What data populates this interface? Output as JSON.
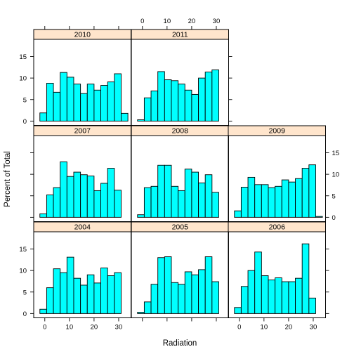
{
  "chart_data": {
    "type": "bar",
    "subtype": "histogram-trellis",
    "xlabel": "Radiation",
    "ylabel": "Percent of Total",
    "xlim": [
      -4.5,
      35
    ],
    "ylim": [
      -1,
      19
    ],
    "xticks": [
      0,
      10,
      20,
      30
    ],
    "yticks": [
      0,
      5,
      10,
      15
    ],
    "bin_edges": [
      -2,
      0.75,
      3.5,
      6.25,
      9,
      11.75,
      14.5,
      17.25,
      20,
      22.75,
      25.5,
      28.25,
      31,
      33.75
    ],
    "panel_layout": [
      [
        "2010",
        "2011",
        null
      ],
      [
        "2007",
        "2008",
        "2009"
      ],
      [
        "2004",
        "2005",
        "2006"
      ]
    ],
    "colors": {
      "bar_fill": "#00ffff",
      "bar_stroke": "#000000",
      "strip_fill": "#ffe5cc"
    },
    "panels": [
      {
        "name": "2010",
        "values": [
          1.9,
          8.8,
          6.7,
          11.3,
          10.2,
          8.6,
          6.4,
          8.6,
          7.2,
          8.3,
          9.1,
          11.0,
          1.8
        ]
      },
      {
        "name": "2011",
        "values": [
          0.3,
          5.4,
          7.0,
          11.5,
          9.6,
          9.4,
          8.6,
          7.2,
          6.2,
          10.0,
          11.4,
          11.9,
          0
        ]
      },
      {
        "name": "2007",
        "values": [
          0.8,
          5.2,
          6.9,
          12.9,
          9.5,
          10.5,
          9.9,
          9.6,
          6.2,
          7.9,
          11.4,
          6.3,
          0
        ]
      },
      {
        "name": "2008",
        "values": [
          0.6,
          6.9,
          7.2,
          12.1,
          12.1,
          7.2,
          6.2,
          11.2,
          10.5,
          8.0,
          9.9,
          5.8,
          0
        ]
      },
      {
        "name": "2009",
        "values": [
          1.5,
          7.0,
          9.3,
          7.6,
          7.6,
          6.9,
          7.2,
          8.7,
          8.2,
          9.0,
          11.4,
          12.2,
          0.2
        ]
      },
      {
        "name": "2004",
        "values": [
          1.0,
          6.0,
          10.4,
          9.5,
          13.1,
          8.2,
          6.6,
          9.0,
          7.1,
          10.6,
          8.8,
          9.5,
          0
        ]
      },
      {
        "name": "2005",
        "values": [
          0.3,
          2.7,
          6.8,
          13.0,
          13.2,
          7.2,
          6.8,
          9.7,
          9.0,
          10.2,
          13.2,
          7.4,
          0
        ]
      },
      {
        "name": "2006",
        "values": [
          1.4,
          6.3,
          10.0,
          14.3,
          8.8,
          7.8,
          8.3,
          7.4,
          7.4,
          8.2,
          16.2,
          3.6,
          0
        ]
      }
    ]
  }
}
